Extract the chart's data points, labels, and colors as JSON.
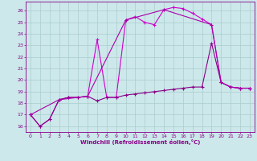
{
  "xlabel": "Windchill (Refroidissement éolien,°C)",
  "background_color": "#cce8ea",
  "grid_color": "#aacccc",
  "line_color1": "#cc00cc",
  "line_color2": "#880088",
  "xlim": [
    -0.5,
    23.5
  ],
  "ylim": [
    15.5,
    26.8
  ],
  "yticks": [
    16,
    17,
    18,
    19,
    20,
    21,
    22,
    23,
    24,
    25,
    26
  ],
  "xticks": [
    0,
    1,
    2,
    3,
    4,
    5,
    6,
    7,
    8,
    9,
    10,
    11,
    12,
    13,
    14,
    15,
    16,
    17,
    18,
    19,
    20,
    21,
    22,
    23
  ],
  "series": [
    {
      "x": [
        0,
        1,
        2,
        3,
        4,
        5,
        6,
        7,
        8,
        9,
        10,
        11,
        12,
        13,
        14,
        15,
        16,
        17,
        18,
        19,
        20,
        21,
        22,
        23
      ],
      "y": [
        17.0,
        16.0,
        16.6,
        18.3,
        18.5,
        18.5,
        18.6,
        23.5,
        18.5,
        18.5,
        25.2,
        25.5,
        25.0,
        24.8,
        26.1,
        26.3,
        26.2,
        25.8,
        25.3,
        24.8,
        19.8,
        19.4,
        19.3,
        19.3
      ],
      "color": "#cc00cc",
      "marker": "+"
    },
    {
      "x": [
        0,
        1,
        2,
        3,
        4,
        5,
        6,
        7,
        8,
        9,
        10,
        11,
        12,
        13,
        14,
        15,
        16,
        17,
        18,
        19,
        20,
        21,
        22,
        23
      ],
      "y": [
        17.0,
        16.0,
        16.6,
        18.3,
        18.5,
        18.5,
        18.6,
        18.2,
        18.5,
        18.5,
        18.7,
        18.8,
        18.9,
        19.0,
        19.1,
        19.2,
        19.3,
        19.4,
        19.4,
        23.2,
        19.8,
        19.4,
        19.3,
        19.3
      ],
      "color": "#880088",
      "marker": "+"
    },
    {
      "x": [
        0,
        3,
        6,
        10,
        14,
        19,
        20,
        21,
        22,
        23
      ],
      "y": [
        17.0,
        18.3,
        18.6,
        25.2,
        26.1,
        24.8,
        19.8,
        19.4,
        19.3,
        19.3
      ],
      "color": "#aa00aa",
      "marker": "+"
    }
  ]
}
